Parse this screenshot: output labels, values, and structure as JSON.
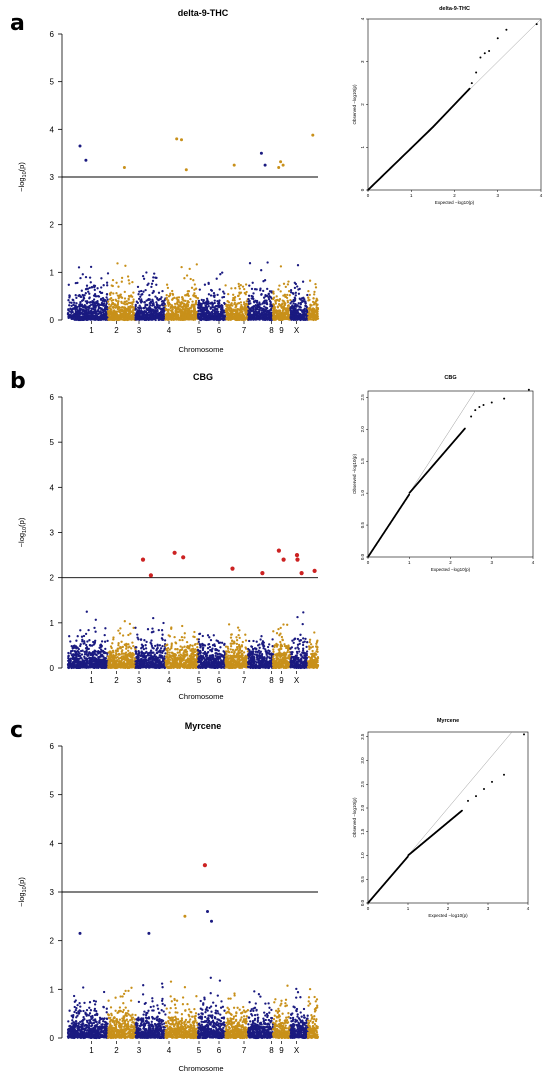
{
  "chart_data": [
    {
      "panel": "a",
      "type": "scatter",
      "kind": "manhattan",
      "title": "delta-9-THC",
      "xlabel": "Chromosome",
      "ylabel": "−log10(p)",
      "ylim": [
        0,
        6
      ],
      "yticks": [
        0,
        1,
        2,
        3,
        4,
        5,
        6
      ],
      "threshold": 3,
      "chromosomes": [
        "1",
        "2",
        "3",
        "4",
        "5",
        "6",
        "7",
        "8",
        "9",
        "X"
      ],
      "chrom_labels": [
        "1",
        "2",
        "3",
        "4",
        "5",
        "6",
        "7",
        "8",
        "9",
        "X"
      ],
      "colors": {
        "odd": "#1a1a80",
        "even": "#c8901a",
        "highlight": "#cc2222",
        "line": "#000000"
      },
      "top_points": [
        {
          "chr": "1",
          "y": 3.65
        },
        {
          "chr": "1",
          "y": 3.35
        },
        {
          "chr": "2",
          "y": 3.2
        },
        {
          "chr": "4",
          "y": 3.8
        },
        {
          "chr": "4",
          "y": 3.78
        },
        {
          "chr": "4",
          "y": 3.15
        },
        {
          "chr": "6",
          "y": 3.25
        },
        {
          "chr": "7",
          "y": 3.5
        },
        {
          "chr": "7",
          "y": 3.25
        },
        {
          "chr": "8",
          "y": 3.32
        },
        {
          "chr": "8",
          "y": 3.25
        },
        {
          "chr": "8",
          "y": 3.2
        },
        {
          "chr": "X",
          "y": 3.88
        }
      ],
      "highlight_points": [],
      "grid": false
    },
    {
      "panel": "a",
      "type": "scatter",
      "kind": "qq",
      "title": "delta-9-THC",
      "xlabel": "Expected −log10(p)",
      "ylabel": "Observed −log10(p)",
      "xlim": [
        0,
        4
      ],
      "ylim": [
        0,
        4
      ],
      "xticks": [
        0,
        1,
        2,
        3,
        4
      ],
      "yticks": [
        0,
        1,
        2,
        3,
        4
      ],
      "max_expected": 3.9,
      "deviation": "above",
      "tail_points": [
        {
          "x": 2.4,
          "y": 2.5
        },
        {
          "x": 2.5,
          "y": 2.75
        },
        {
          "x": 2.6,
          "y": 3.1
        },
        {
          "x": 2.7,
          "y": 3.2
        },
        {
          "x": 2.8,
          "y": 3.25
        },
        {
          "x": 3.0,
          "y": 3.55
        },
        {
          "x": 3.2,
          "y": 3.75
        },
        {
          "x": 3.9,
          "y": 3.88
        }
      ]
    },
    {
      "panel": "b",
      "type": "scatter",
      "kind": "manhattan",
      "title": "CBG",
      "xlabel": "Chromosome",
      "ylabel": "−log10(p)",
      "ylim": [
        0,
        6
      ],
      "yticks": [
        0,
        1,
        2,
        3,
        4,
        5,
        6
      ],
      "threshold": 2,
      "chromosomes": [
        "1",
        "2",
        "3",
        "4",
        "5",
        "6",
        "7",
        "8",
        "9",
        "X"
      ],
      "chrom_labels": [
        "1",
        "2",
        "3",
        "4",
        "5",
        "6",
        "7",
        "8",
        "9",
        "X"
      ],
      "colors": {
        "odd": "#1a1a80",
        "even": "#c8901a",
        "highlight": "#cc2222",
        "line": "#000000"
      },
      "top_points": [],
      "highlight_points": [
        {
          "chr": "3",
          "y": 2.4
        },
        {
          "chr": "3",
          "y": 2.05
        },
        {
          "chr": "4",
          "y": 2.55
        },
        {
          "chr": "4",
          "y": 2.45
        },
        {
          "chr": "6",
          "y": 2.2
        },
        {
          "chr": "7",
          "y": 2.1
        },
        {
          "chr": "8",
          "y": 2.6
        },
        {
          "chr": "8",
          "y": 2.4
        },
        {
          "chr": "9",
          "y": 2.5
        },
        {
          "chr": "9",
          "y": 2.1
        },
        {
          "chr": "9",
          "y": 2.4
        },
        {
          "chr": "X",
          "y": 2.15
        }
      ],
      "grid": false
    },
    {
      "panel": "b",
      "type": "scatter",
      "kind": "qq",
      "title": "CBG",
      "xlabel": "Expected −log10(p)",
      "ylabel": "Observed −log10(p)",
      "xlim": [
        0,
        4
      ],
      "ylim": [
        0,
        2.6
      ],
      "xticks": [
        0,
        1,
        2,
        3,
        4
      ],
      "yticks": [
        0,
        0.5,
        1.0,
        1.5,
        2.0,
        2.5
      ],
      "max_expected": 3.9,
      "deviation": "below",
      "tail_points": [
        {
          "x": 2.5,
          "y": 2.2
        },
        {
          "x": 2.6,
          "y": 2.3
        },
        {
          "x": 2.7,
          "y": 2.35
        },
        {
          "x": 2.8,
          "y": 2.38
        },
        {
          "x": 3.0,
          "y": 2.42
        },
        {
          "x": 3.3,
          "y": 2.48
        },
        {
          "x": 3.9,
          "y": 2.62
        }
      ]
    },
    {
      "panel": "c",
      "type": "scatter",
      "kind": "manhattan",
      "title": "Myrcene",
      "xlabel": "Chromosome",
      "ylabel": "−log10(p)",
      "ylim": [
        0,
        6
      ],
      "yticks": [
        0,
        1,
        2,
        3,
        4,
        5,
        6
      ],
      "threshold": 3,
      "chromosomes": [
        "1",
        "2",
        "3",
        "4",
        "5",
        "6",
        "7",
        "8",
        "9",
        "X"
      ],
      "chrom_labels": [
        "1",
        "2",
        "3",
        "4",
        "5",
        "6",
        "7",
        "8",
        "9",
        "X"
      ],
      "colors": {
        "odd": "#1a1a80",
        "even": "#c8901a",
        "highlight": "#cc2222",
        "line": "#000000"
      },
      "top_points": [
        {
          "chr": "1",
          "y": 2.15
        },
        {
          "chr": "3",
          "y": 2.15
        },
        {
          "chr": "4",
          "y": 2.5
        },
        {
          "chr": "5",
          "y": 2.6
        },
        {
          "chr": "5",
          "y": 2.4
        }
      ],
      "highlight_points": [
        {
          "chr": "5",
          "y": 3.55
        }
      ],
      "grid": false
    },
    {
      "panel": "c",
      "type": "scatter",
      "kind": "qq",
      "title": "Myrcene",
      "xlabel": "Expected −log10(p)",
      "ylabel": "Observed −log10(p)",
      "xlim": [
        0,
        4
      ],
      "ylim": [
        0,
        3.6
      ],
      "xticks": [
        0,
        1,
        2,
        3,
        4
      ],
      "yticks": [
        0,
        0.5,
        1.0,
        1.5,
        2.0,
        2.5,
        3.0,
        3.5
      ],
      "max_expected": 3.9,
      "deviation": "below",
      "tail_points": [
        {
          "x": 2.5,
          "y": 2.15
        },
        {
          "x": 2.7,
          "y": 2.25
        },
        {
          "x": 2.9,
          "y": 2.4
        },
        {
          "x": 3.1,
          "y": 2.55
        },
        {
          "x": 3.4,
          "y": 2.7
        },
        {
          "x": 3.9,
          "y": 3.55
        }
      ]
    }
  ]
}
